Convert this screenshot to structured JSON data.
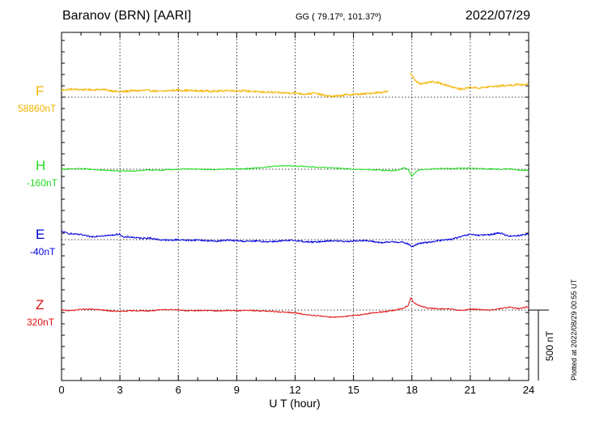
{
  "header": {
    "station": "Baranov (BRN)  [AARI]",
    "coords": "GG ( 79.17º, 101.37º)",
    "date": "2022/07/29"
  },
  "plotted_note": "Plotted at 2022/08/29 00:55 UT",
  "colors": {
    "F": "#f4b400",
    "H": "#22dd22",
    "E": "#0000dd",
    "Z": "#e01010"
  },
  "chart_data": {
    "type": "line",
    "title": "Baranov (BRN)  [AARI]",
    "xlabel": "U T (hour)",
    "xlim": [
      0,
      24
    ],
    "xticks": [
      "0",
      "3",
      "6",
      "9",
      "12",
      "15",
      "18",
      "21",
      "24"
    ],
    "scale_label": "500 nT",
    "grid": true,
    "series": [
      {
        "name": "F",
        "baseline": "58860nT",
        "color": "#f4b400",
        "gaps": [
          [
            16.8,
            17.9
          ]
        ],
        "x": [
          0,
          0.5,
          1,
          1.5,
          2,
          2.5,
          3,
          3.5,
          4,
          4.5,
          5,
          5.5,
          6,
          6.5,
          7,
          7.5,
          8,
          8.5,
          9,
          9.5,
          10,
          10.5,
          11,
          11.5,
          12,
          12.5,
          13,
          13.5,
          14,
          14.5,
          15,
          15.5,
          16,
          16.5,
          16.8,
          17.9,
          18,
          18.2,
          18.5,
          19,
          19.5,
          20,
          20.5,
          21,
          21.5,
          22,
          22.5,
          23,
          23.5,
          24
        ],
        "y": [
          50,
          56,
          54,
          52,
          55,
          48,
          36,
          45,
          46,
          48,
          40,
          46,
          50,
          47,
          44,
          44,
          42,
          48,
          45,
          45,
          38,
          35,
          32,
          30,
          30,
          22,
          28,
          12,
          5,
          15,
          20,
          22,
          30,
          36,
          40,
          170,
          155,
          116,
          92,
          108,
          98,
          76,
          55,
          70,
          65,
          74,
          80,
          85,
          88,
          90
        ],
        "noise": 8
      },
      {
        "name": "H",
        "baseline": "-160nT",
        "color": "#22dd22",
        "x": [
          0,
          0.5,
          1,
          1.5,
          2,
          2.5,
          3,
          3.5,
          4,
          4.5,
          5,
          5.5,
          6,
          6.5,
          7,
          7.5,
          8,
          8.5,
          9,
          9.5,
          10,
          10.5,
          11,
          11.5,
          12,
          12.5,
          13,
          13.5,
          14,
          14.5,
          15,
          15.5,
          16,
          16.5,
          17,
          17.3,
          17.6,
          17.8,
          18,
          18.15,
          18.3,
          18.6,
          19,
          19.5,
          20,
          20.5,
          21,
          21.5,
          22,
          22.5,
          23,
          23.5,
          24
        ],
        "y": [
          0,
          2,
          4,
          0,
          -6,
          -10,
          -12,
          -14,
          -10,
          -5,
          -8,
          -2,
          0,
          2,
          0,
          -2,
          -2,
          2,
          2,
          4,
          8,
          14,
          22,
          25,
          22,
          20,
          15,
          12,
          10,
          5,
          0,
          -2,
          -4,
          -8,
          -10,
          -6,
          10,
          0,
          -50,
          -25,
          -10,
          0,
          2,
          6,
          4,
          6,
          8,
          4,
          2,
          0,
          2,
          -5,
          -8
        ],
        "noise": 4
      },
      {
        "name": "E",
        "baseline": "-40nT",
        "color": "#0000dd",
        "x": [
          0,
          0.3,
          0.6,
          1,
          1.5,
          2,
          2.5,
          3,
          3.2,
          3.5,
          4,
          4.5,
          5,
          5.5,
          6,
          6.5,
          7,
          7.5,
          8,
          8.5,
          9,
          9.5,
          10,
          10.5,
          11,
          11.5,
          12,
          12.5,
          13,
          13.5,
          14,
          14.5,
          15,
          15.5,
          16,
          16.5,
          17,
          17.5,
          17.8,
          18,
          18.3,
          18.6,
          19,
          19.5,
          20,
          20.5,
          21,
          21.5,
          22,
          22.5,
          23,
          23.5,
          24
        ],
        "y": [
          60,
          45,
          40,
          35,
          20,
          28,
          30,
          40,
          15,
          20,
          10,
          12,
          0,
          -5,
          0,
          -5,
          -2,
          -8,
          -10,
          -4,
          -8,
          -12,
          -10,
          -14,
          -12,
          -8,
          -5,
          -15,
          -18,
          -10,
          -8,
          -12,
          -10,
          -5,
          -14,
          -22,
          -15,
          -18,
          -30,
          -50,
          -30,
          -22,
          -15,
          -5,
          2,
          20,
          38,
          30,
          36,
          48,
          25,
          30,
          40
        ],
        "noise": 6
      },
      {
        "name": "Z",
        "baseline": "320nT",
        "color": "#e01010",
        "x": [
          0,
          0.5,
          1,
          1.5,
          2,
          2.5,
          3,
          3.5,
          4,
          4.5,
          5,
          5.5,
          6,
          6.5,
          7,
          7.5,
          8,
          8.5,
          9,
          9.5,
          10,
          10.5,
          11,
          11.5,
          12,
          12.5,
          13,
          13.5,
          14,
          14.5,
          15,
          15.5,
          16,
          16.5,
          17,
          17.5,
          17.8,
          17.95,
          18.1,
          18.4,
          18.8,
          19.3,
          20,
          20.5,
          21,
          21.5,
          22,
          22.5,
          23,
          23.5,
          24
        ],
        "y": [
          0,
          -4,
          5,
          6,
          2,
          -6,
          -10,
          -6,
          -4,
          -6,
          0,
          4,
          2,
          -6,
          -3,
          -3,
          -6,
          -3,
          -4,
          -2,
          -4,
          -8,
          -10,
          -15,
          -20,
          -32,
          -38,
          -45,
          -50,
          -45,
          -40,
          -30,
          -20,
          -12,
          -5,
          10,
          30,
          90,
          50,
          30,
          15,
          10,
          8,
          -4,
          6,
          5,
          -2,
          10,
          20,
          10,
          25
        ],
        "noise": 4
      }
    ]
  }
}
